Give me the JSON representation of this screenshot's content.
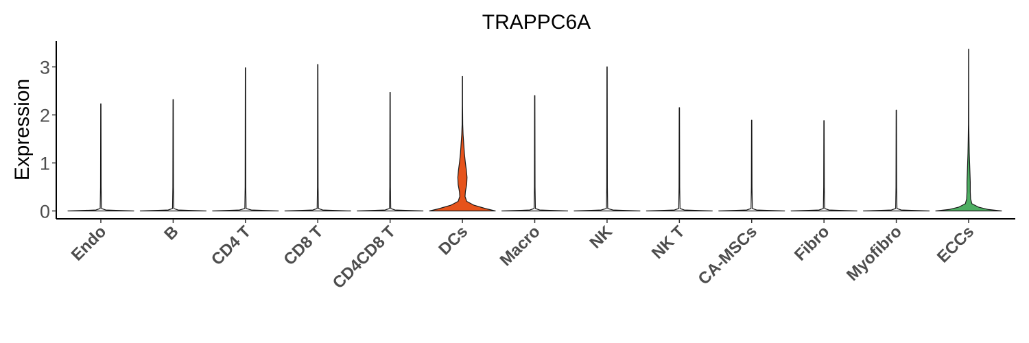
{
  "chart_data": {
    "type": "violin",
    "title": "TRAPPC6A",
    "xlabel": "",
    "ylabel": "Expression",
    "ylim": [
      -0.15,
      3.55
    ],
    "yticks": [
      0,
      1,
      2,
      3
    ],
    "grid": false,
    "legend": "none",
    "categories": [
      "Endo",
      "B",
      "CD4 T",
      "CD8 T",
      "CD4CD8 T",
      "DCs",
      "Macro",
      "NK",
      "NK T",
      "CA-MSCs",
      "Fibro",
      "Myofibro",
      "ECCs"
    ],
    "series": [
      {
        "category": "Endo",
        "max": 2.23,
        "color": "#ffffff",
        "density": [
          [
            0,
            1.0
          ],
          [
            0.02,
            0.15
          ],
          [
            0.05,
            0.02
          ],
          [
            0.5,
            0.01
          ],
          [
            2.23,
            0.005
          ]
        ]
      },
      {
        "category": "B",
        "max": 2.32,
        "color": "#ffffff",
        "density": [
          [
            0,
            1.0
          ],
          [
            0.02,
            0.15
          ],
          [
            0.05,
            0.02
          ],
          [
            0.5,
            0.01
          ],
          [
            2.32,
            0.005
          ]
        ]
      },
      {
        "category": "CD4 T",
        "max": 2.98,
        "color": "#ffffff",
        "density": [
          [
            0,
            1.0
          ],
          [
            0.02,
            0.18
          ],
          [
            0.05,
            0.02
          ],
          [
            0.5,
            0.01
          ],
          [
            2.98,
            0.005
          ]
        ]
      },
      {
        "category": "CD8 T",
        "max": 3.05,
        "color": "#ffffff",
        "density": [
          [
            0,
            1.0
          ],
          [
            0.02,
            0.15
          ],
          [
            0.05,
            0.02
          ],
          [
            0.5,
            0.01
          ],
          [
            3.05,
            0.005
          ]
        ]
      },
      {
        "category": "CD4CD8 T",
        "max": 2.47,
        "color": "#ffffff",
        "density": [
          [
            0,
            1.0
          ],
          [
            0.02,
            0.15
          ],
          [
            0.05,
            0.02
          ],
          [
            0.5,
            0.01
          ],
          [
            2.47,
            0.005
          ]
        ]
      },
      {
        "category": "DCs",
        "max": 2.8,
        "color": "#e6531b",
        "density": [
          [
            0,
            1.0
          ],
          [
            0.05,
            0.7
          ],
          [
            0.12,
            0.35
          ],
          [
            0.2,
            0.13
          ],
          [
            0.3,
            0.08
          ],
          [
            0.4,
            0.09
          ],
          [
            0.55,
            0.13
          ],
          [
            0.7,
            0.14
          ],
          [
            0.85,
            0.12
          ],
          [
            1.0,
            0.09
          ],
          [
            1.2,
            0.06
          ],
          [
            1.4,
            0.04
          ],
          [
            1.6,
            0.02
          ],
          [
            1.8,
            0.01
          ],
          [
            2.2,
            0.005
          ],
          [
            2.8,
            0.004
          ]
        ]
      },
      {
        "category": "Macro",
        "max": 2.4,
        "color": "#ffffff",
        "density": [
          [
            0,
            1.0
          ],
          [
            0.02,
            0.15
          ],
          [
            0.05,
            0.02
          ],
          [
            0.5,
            0.01
          ],
          [
            2.4,
            0.005
          ]
        ]
      },
      {
        "category": "NK",
        "max": 3.0,
        "color": "#ffffff",
        "density": [
          [
            0,
            1.0
          ],
          [
            0.02,
            0.18
          ],
          [
            0.05,
            0.02
          ],
          [
            0.5,
            0.01
          ],
          [
            3.0,
            0.005
          ]
        ]
      },
      {
        "category": "NK T",
        "max": 2.15,
        "color": "#ffffff",
        "density": [
          [
            0,
            1.0
          ],
          [
            0.02,
            0.15
          ],
          [
            0.05,
            0.02
          ],
          [
            0.5,
            0.01
          ],
          [
            2.15,
            0.005
          ]
        ]
      },
      {
        "category": "CA-MSCs",
        "max": 1.89,
        "color": "#ffffff",
        "density": [
          [
            0,
            1.0
          ],
          [
            0.02,
            0.15
          ],
          [
            0.05,
            0.02
          ],
          [
            0.5,
            0.01
          ],
          [
            1.89,
            0.005
          ]
        ]
      },
      {
        "category": "Fibro",
        "max": 1.88,
        "color": "#ffffff",
        "density": [
          [
            0,
            1.0
          ],
          [
            0.02,
            0.15
          ],
          [
            0.05,
            0.02
          ],
          [
            0.5,
            0.01
          ],
          [
            1.88,
            0.005
          ]
        ]
      },
      {
        "category": "Myofibro",
        "max": 2.1,
        "color": "#ffffff",
        "density": [
          [
            0,
            1.0
          ],
          [
            0.02,
            0.15
          ],
          [
            0.05,
            0.02
          ],
          [
            0.5,
            0.01
          ],
          [
            2.1,
            0.005
          ]
        ]
      },
      {
        "category": "ECCs",
        "max": 3.37,
        "color": "#4dae62",
        "density": [
          [
            0,
            1.0
          ],
          [
            0.03,
            0.6
          ],
          [
            0.08,
            0.3
          ],
          [
            0.15,
            0.1
          ],
          [
            0.25,
            0.06
          ],
          [
            0.4,
            0.05
          ],
          [
            0.6,
            0.05
          ],
          [
            0.8,
            0.04
          ],
          [
            1.0,
            0.03
          ],
          [
            1.2,
            0.02
          ],
          [
            1.5,
            0.012
          ],
          [
            1.8,
            0.006
          ],
          [
            2.5,
            0.004
          ],
          [
            3.37,
            0.003
          ]
        ]
      }
    ]
  }
}
